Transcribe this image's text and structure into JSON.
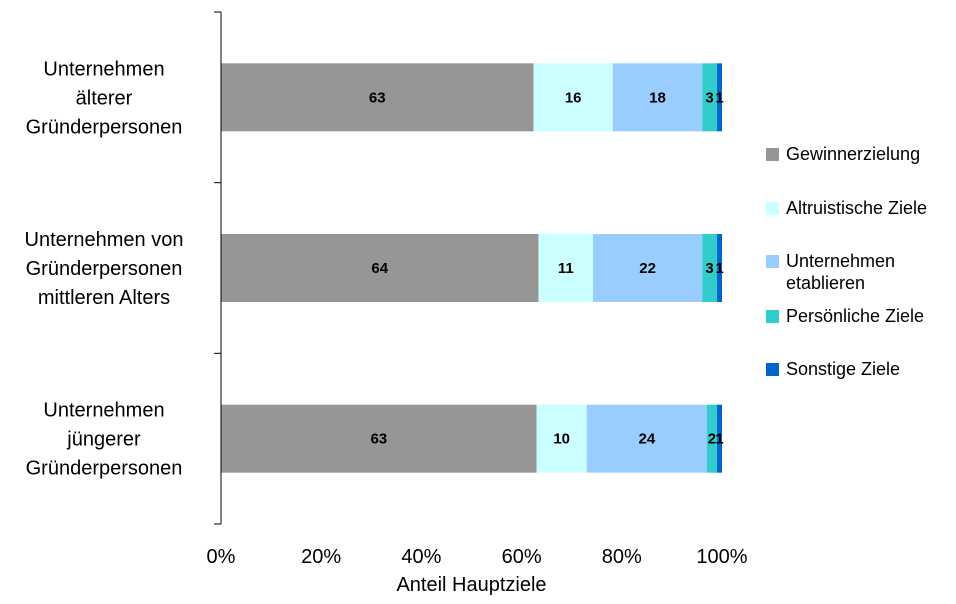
{
  "chart_data": {
    "type": "bar",
    "orientation": "horizontal",
    "stacked": "percent",
    "categories": [
      [
        "Unternehmen",
        "älterer",
        "Gründerpersonen"
      ],
      [
        "Unternehmen von",
        "Gründerpersonen",
        "mittleren Alters"
      ],
      [
        "Unternehmen",
        "jüngerer",
        "Gründerpersonen"
      ]
    ],
    "series": [
      {
        "name": "Gewinnerzielung",
        "name_lines": [
          "Gewinnerzielung"
        ],
        "color": "#969696",
        "values": [
          63,
          64,
          63
        ]
      },
      {
        "name": "Altruistische Ziele",
        "name_lines": [
          "Altruistische Ziele"
        ],
        "color": "#ccffff",
        "values": [
          16,
          11,
          10
        ]
      },
      {
        "name": "Unternehmen etablieren",
        "name_lines": [
          "Unternehmen",
          "etablieren"
        ],
        "color": "#99ccff",
        "values": [
          18,
          22,
          24
        ]
      },
      {
        "name": "Persönliche Ziele",
        "name_lines": [
          "Persönliche Ziele"
        ],
        "color": "#33cccc",
        "values": [
          3,
          3,
          2
        ]
      },
      {
        "name": "Sonstige Ziele",
        "name_lines": [
          "Sonstige Ziele"
        ],
        "color": "#0066cc",
        "values": [
          1,
          1,
          1
        ]
      }
    ],
    "xlabel": "Anteil Hauptziele",
    "xlim": [
      0,
      100
    ],
    "xticks": [
      "0%",
      "20%",
      "40%",
      "60%",
      "80%",
      "100%"
    ],
    "grid": false,
    "legend_position": "right"
  }
}
